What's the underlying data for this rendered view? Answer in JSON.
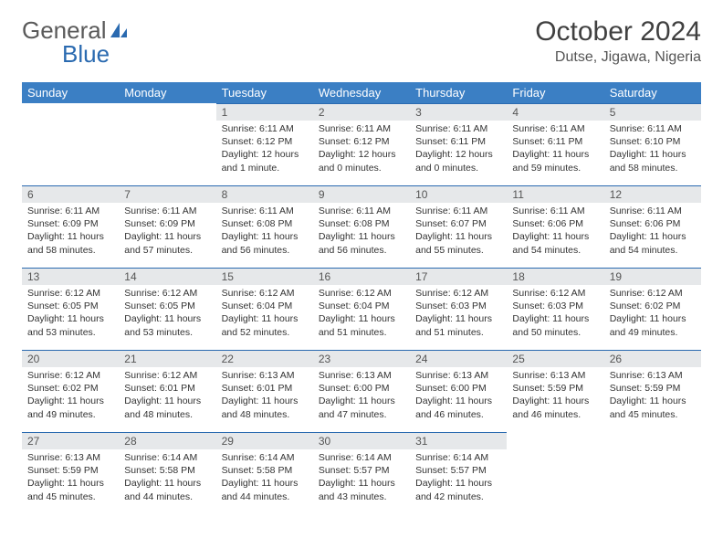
{
  "brand": {
    "part1": "General",
    "part2": "Blue"
  },
  "title": "October 2024",
  "subtitle": "Dutse, Jigawa, Nigeria",
  "colors": {
    "header_bg": "#3b7fc4",
    "header_text": "#ffffff",
    "daynum_bg": "#e6e8ea",
    "cell_border": "#2a6ab0",
    "title_color": "#404040",
    "text_color": "#333333",
    "background": "#ffffff"
  },
  "font": {
    "family": "Arial",
    "title_size": 30,
    "subtitle_size": 16,
    "dayhead_size": 13,
    "daynum_size": 12,
    "body_size": 10.5
  },
  "days_of_week": [
    "Sunday",
    "Monday",
    "Tuesday",
    "Wednesday",
    "Thursday",
    "Friday",
    "Saturday"
  ],
  "weeks": [
    [
      null,
      null,
      {
        "n": "1",
        "sr": "6:11 AM",
        "ss": "6:12 PM",
        "dl": "12 hours and 1 minute."
      },
      {
        "n": "2",
        "sr": "6:11 AM",
        "ss": "6:12 PM",
        "dl": "12 hours and 0 minutes."
      },
      {
        "n": "3",
        "sr": "6:11 AM",
        "ss": "6:11 PM",
        "dl": "12 hours and 0 minutes."
      },
      {
        "n": "4",
        "sr": "6:11 AM",
        "ss": "6:11 PM",
        "dl": "11 hours and 59 minutes."
      },
      {
        "n": "5",
        "sr": "6:11 AM",
        "ss": "6:10 PM",
        "dl": "11 hours and 58 minutes."
      }
    ],
    [
      {
        "n": "6",
        "sr": "6:11 AM",
        "ss": "6:09 PM",
        "dl": "11 hours and 58 minutes."
      },
      {
        "n": "7",
        "sr": "6:11 AM",
        "ss": "6:09 PM",
        "dl": "11 hours and 57 minutes."
      },
      {
        "n": "8",
        "sr": "6:11 AM",
        "ss": "6:08 PM",
        "dl": "11 hours and 56 minutes."
      },
      {
        "n": "9",
        "sr": "6:11 AM",
        "ss": "6:08 PM",
        "dl": "11 hours and 56 minutes."
      },
      {
        "n": "10",
        "sr": "6:11 AM",
        "ss": "6:07 PM",
        "dl": "11 hours and 55 minutes."
      },
      {
        "n": "11",
        "sr": "6:11 AM",
        "ss": "6:06 PM",
        "dl": "11 hours and 54 minutes."
      },
      {
        "n": "12",
        "sr": "6:11 AM",
        "ss": "6:06 PM",
        "dl": "11 hours and 54 minutes."
      }
    ],
    [
      {
        "n": "13",
        "sr": "6:12 AM",
        "ss": "6:05 PM",
        "dl": "11 hours and 53 minutes."
      },
      {
        "n": "14",
        "sr": "6:12 AM",
        "ss": "6:05 PM",
        "dl": "11 hours and 53 minutes."
      },
      {
        "n": "15",
        "sr": "6:12 AM",
        "ss": "6:04 PM",
        "dl": "11 hours and 52 minutes."
      },
      {
        "n": "16",
        "sr": "6:12 AM",
        "ss": "6:04 PM",
        "dl": "11 hours and 51 minutes."
      },
      {
        "n": "17",
        "sr": "6:12 AM",
        "ss": "6:03 PM",
        "dl": "11 hours and 51 minutes."
      },
      {
        "n": "18",
        "sr": "6:12 AM",
        "ss": "6:03 PM",
        "dl": "11 hours and 50 minutes."
      },
      {
        "n": "19",
        "sr": "6:12 AM",
        "ss": "6:02 PM",
        "dl": "11 hours and 49 minutes."
      }
    ],
    [
      {
        "n": "20",
        "sr": "6:12 AM",
        "ss": "6:02 PM",
        "dl": "11 hours and 49 minutes."
      },
      {
        "n": "21",
        "sr": "6:12 AM",
        "ss": "6:01 PM",
        "dl": "11 hours and 48 minutes."
      },
      {
        "n": "22",
        "sr": "6:13 AM",
        "ss": "6:01 PM",
        "dl": "11 hours and 48 minutes."
      },
      {
        "n": "23",
        "sr": "6:13 AM",
        "ss": "6:00 PM",
        "dl": "11 hours and 47 minutes."
      },
      {
        "n": "24",
        "sr": "6:13 AM",
        "ss": "6:00 PM",
        "dl": "11 hours and 46 minutes."
      },
      {
        "n": "25",
        "sr": "6:13 AM",
        "ss": "5:59 PM",
        "dl": "11 hours and 46 minutes."
      },
      {
        "n": "26",
        "sr": "6:13 AM",
        "ss": "5:59 PM",
        "dl": "11 hours and 45 minutes."
      }
    ],
    [
      {
        "n": "27",
        "sr": "6:13 AM",
        "ss": "5:59 PM",
        "dl": "11 hours and 45 minutes."
      },
      {
        "n": "28",
        "sr": "6:14 AM",
        "ss": "5:58 PM",
        "dl": "11 hours and 44 minutes."
      },
      {
        "n": "29",
        "sr": "6:14 AM",
        "ss": "5:58 PM",
        "dl": "11 hours and 44 minutes."
      },
      {
        "n": "30",
        "sr": "6:14 AM",
        "ss": "5:57 PM",
        "dl": "11 hours and 43 minutes."
      },
      {
        "n": "31",
        "sr": "6:14 AM",
        "ss": "5:57 PM",
        "dl": "11 hours and 42 minutes."
      },
      null,
      null
    ]
  ],
  "labels": {
    "sunrise": "Sunrise:",
    "sunset": "Sunset:",
    "daylight": "Daylight:"
  }
}
